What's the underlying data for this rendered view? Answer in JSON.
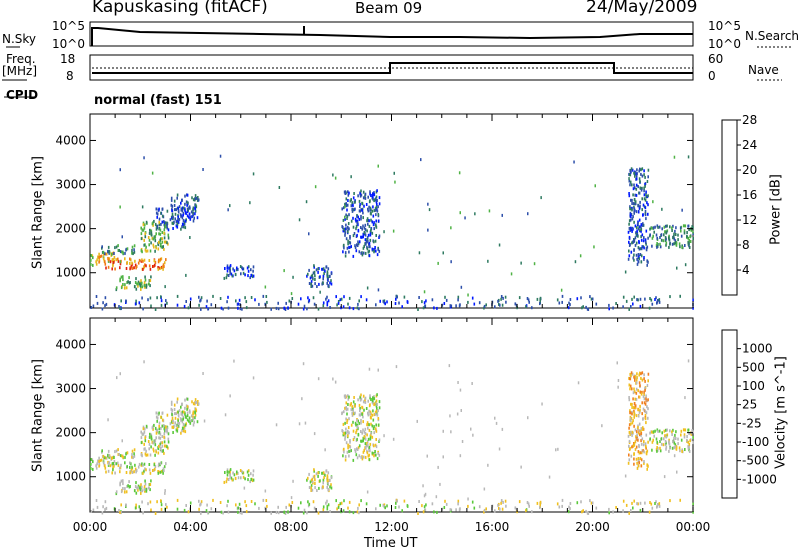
{
  "header": {
    "station": "Kapuskasing (fitACF)",
    "beam": "Beam 09",
    "date": "24/May/2009"
  },
  "top_panels": {
    "nsky_label": "N.Sky",
    "nsky_ticks": [
      "10^5",
      "10^0"
    ],
    "nsearch_label": "N.Search",
    "nsearch_ticks": [
      "10^5",
      "10^0"
    ],
    "freq_label": "Freq.",
    "freq_unit": "[MHz]",
    "freq_ticks": [
      "18",
      "8"
    ],
    "nave_label": "Nave",
    "nave_ticks": [
      "60",
      "0"
    ],
    "cpid_label": "CPID",
    "mode_text": "normal (fast) 151"
  },
  "chart_data": [
    {
      "type": "heatmap",
      "name": "power-panel",
      "ylabel": "Slant Range [km]",
      "ylim": [
        200,
        4600
      ],
      "yticks": [
        "1000",
        "2000",
        "3000",
        "4000"
      ],
      "xlim": [
        0,
        24
      ],
      "colorbar_label": "Power [dB]",
      "colorbar_ticks": [
        "4",
        "8",
        "12",
        "16",
        "20",
        "24",
        "28"
      ],
      "colors": [
        "#0019ff",
        "#2d4faa",
        "#2e7a60",
        "#4fb245",
        "#e6b81e",
        "#f07a14",
        "#e02010"
      ],
      "patches": [
        {
          "t0": 0.0,
          "t1": 1.0,
          "r0": 1200,
          "r1": 1500,
          "level": 4
        },
        {
          "t0": 0.4,
          "t1": 1.8,
          "r0": 1450,
          "r1": 1650,
          "level": 2
        },
        {
          "t0": 0.6,
          "t1": 3.0,
          "r0": 1100,
          "r1": 1350,
          "level": 5
        },
        {
          "t0": 1.0,
          "t1": 2.4,
          "r0": 650,
          "r1": 950,
          "level": 3
        },
        {
          "t0": 2.0,
          "t1": 3.1,
          "r0": 1500,
          "r1": 2200,
          "level": 3
        },
        {
          "t0": 2.6,
          "t1": 3.8,
          "r0": 2000,
          "r1": 2500,
          "level": 1
        },
        {
          "t0": 3.2,
          "t1": 4.3,
          "r0": 2200,
          "r1": 2800,
          "level": 1
        },
        {
          "t0": 5.3,
          "t1": 6.5,
          "r0": 900,
          "r1": 1200,
          "level": 1
        },
        {
          "t0": 8.6,
          "t1": 9.6,
          "r0": 700,
          "r1": 1200,
          "level": 1
        },
        {
          "t0": 10.0,
          "t1": 11.5,
          "r0": 1400,
          "r1": 2900,
          "level": 1
        },
        {
          "t0": 21.4,
          "t1": 22.2,
          "r0": 1200,
          "r1": 3400,
          "level": 1
        },
        {
          "t0": 22.2,
          "t1": 24.0,
          "r0": 1600,
          "r1": 2100,
          "level": 2
        },
        {
          "t0": 0.0,
          "t1": 24.0,
          "r0": 200,
          "r1": 500,
          "level": 1
        }
      ]
    },
    {
      "type": "heatmap",
      "name": "velocity-panel",
      "ylabel": "Slant Range [km]",
      "ylim": [
        200,
        4600
      ],
      "yticks": [
        "1000",
        "2000",
        "3000",
        "4000"
      ],
      "xlabel": "Time UT",
      "xticks": [
        "00:00",
        "04:00",
        "08:00",
        "12:00",
        "16:00",
        "20:00",
        "00:00"
      ],
      "xlim": [
        0,
        24
      ],
      "colorbar_label": "Velocity [m s^-1]",
      "colorbar_ticks": [
        "1000",
        "500",
        "100",
        "25",
        "-25",
        "-100",
        "-500",
        "-1000"
      ],
      "colors": [
        "#1a2fbf",
        "#3a66a8",
        "#2e8a5a",
        "#5ac83a",
        "#b8b8b8",
        "#f0c020",
        "#f08020",
        "#e84010",
        "#e00000"
      ],
      "patches": [
        {
          "t0": 0.0,
          "t1": 1.0,
          "r0": 1200,
          "r1": 1500,
          "level": 4
        },
        {
          "t0": 0.4,
          "t1": 1.8,
          "r0": 1450,
          "r1": 1650,
          "level": 4
        },
        {
          "t0": 0.6,
          "t1": 3.0,
          "r0": 1100,
          "r1": 1350,
          "level": 4
        },
        {
          "t0": 1.0,
          "t1": 2.4,
          "r0": 650,
          "r1": 950,
          "level": 4
        },
        {
          "t0": 2.0,
          "t1": 3.1,
          "r0": 1500,
          "r1": 2200,
          "level": 4
        },
        {
          "t0": 2.6,
          "t1": 3.8,
          "r0": 2000,
          "r1": 2500,
          "level": 4
        },
        {
          "t0": 3.2,
          "t1": 4.3,
          "r0": 2200,
          "r1": 2800,
          "level": 4
        },
        {
          "t0": 5.3,
          "t1": 6.5,
          "r0": 900,
          "r1": 1200,
          "level": 4
        },
        {
          "t0": 8.6,
          "t1": 9.6,
          "r0": 700,
          "r1": 1200,
          "level": 4
        },
        {
          "t0": 10.0,
          "t1": 11.5,
          "r0": 1400,
          "r1": 2900,
          "level": 4
        },
        {
          "t0": 21.4,
          "t1": 22.2,
          "r0": 1200,
          "r1": 3400,
          "level": 5
        },
        {
          "t0": 22.2,
          "t1": 24.0,
          "r0": 1600,
          "r1": 2100,
          "level": 4
        },
        {
          "t0": 0.0,
          "t1": 24.0,
          "r0": 200,
          "r1": 500,
          "level": 4
        }
      ]
    }
  ]
}
